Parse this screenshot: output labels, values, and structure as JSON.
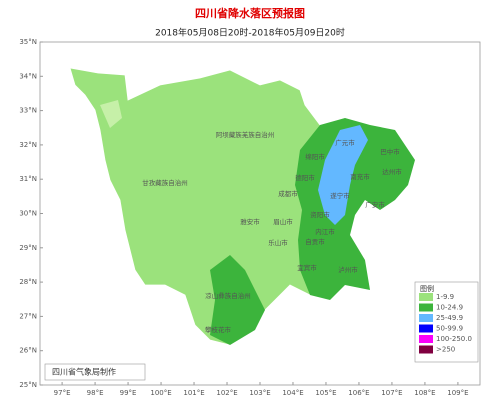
{
  "map": {
    "title": "四川省降水落区预报图",
    "subtitle": "2018年05月08日20时-2018年05月09日20时",
    "lonlim": [
      96.33,
      109.67
    ],
    "latlim": [
      25,
      35
    ],
    "lon_ticks": [
      {
        "value": 97,
        "label": "97°E"
      },
      {
        "value": 98,
        "label": "98°E"
      },
      {
        "value": 99,
        "label": "99°E"
      },
      {
        "value": 100,
        "label": "100°E"
      },
      {
        "value": 101,
        "label": "101°E"
      },
      {
        "value": 102,
        "label": "102°E"
      },
      {
        "value": 103,
        "label": "103°E"
      },
      {
        "value": 104,
        "label": "104°E"
      },
      {
        "value": 105,
        "label": "105°E"
      },
      {
        "value": 106,
        "label": "106°E"
      },
      {
        "value": 107,
        "label": "107°E"
      },
      {
        "value": 108,
        "label": "108°E"
      },
      {
        "value": 109,
        "label": "109°E"
      }
    ],
    "lat_ticks": [
      {
        "value": 25,
        "label": "25°N"
      },
      {
        "value": 26,
        "label": "26°N"
      },
      {
        "value": 27,
        "label": "27°N"
      },
      {
        "value": 28,
        "label": "28°N"
      },
      {
        "value": 29,
        "label": "29°N"
      },
      {
        "value": 30,
        "label": "30°N"
      },
      {
        "value": 31,
        "label": "31°N"
      },
      {
        "value": 32,
        "label": "32°N"
      },
      {
        "value": 33,
        "label": "33°N"
      },
      {
        "value": 34,
        "label": "34°N"
      },
      {
        "value": 35,
        "label": "35°N"
      }
    ],
    "regions": [
      "阿坝藏族羌族自治州",
      "甘孜藏族自治州",
      "广元市",
      "巴中市",
      "绵阳市",
      "达州市",
      "德阳市",
      "南充市",
      "成都市",
      "遂宁市",
      "广安市",
      "雅安市",
      "眉山市",
      "资阳市",
      "乐山市",
      "内江市",
      "自贡市",
      "宜宾市",
      "泸州市",
      "凉山彝族自治州",
      "攀枝花市"
    ],
    "legend": {
      "title": "图例",
      "items": [
        {
          "label": "1-9.9",
          "color": "#9be27c"
        },
        {
          "label": "10-24.9",
          "color": "#3cb43c"
        },
        {
          "label": "25-49.9",
          "color": "#63b8ff"
        },
        {
          "label": "50-99.9",
          "color": "#0000fe"
        },
        {
          "label": "100-250.0",
          "color": "#fa00fa"
        },
        {
          "label": ">250",
          "color": "#800040"
        }
      ]
    },
    "footer": "四川省气象局制作"
  }
}
